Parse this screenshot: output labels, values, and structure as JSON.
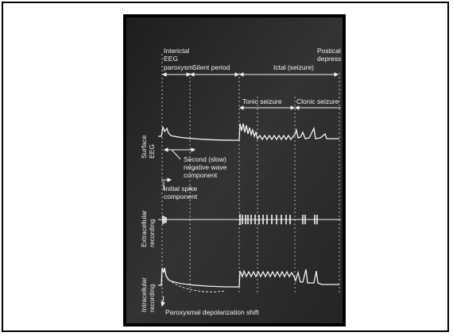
{
  "figure": {
    "phases": {
      "interictal": [
        "Interictal",
        "EEG",
        "paroxysm"
      ],
      "silent": "Silent period",
      "ictal": "Ictal (seizure)",
      "postictal": [
        "Postical",
        "depress"
      ]
    },
    "sub_phases": {
      "tonic": "Tonic seizure",
      "clonic": "Clonic seizure"
    },
    "channels": {
      "surface_eeg": [
        "Surface",
        "EEG"
      ],
      "extracellular": [
        "Extracellular",
        "recording"
      ],
      "intracellular": [
        "Intracellular",
        "recording"
      ]
    },
    "annotations": {
      "slow_wave": [
        "Second (slow)",
        "negative wave",
        "component"
      ],
      "initial_spike": [
        "Initial spike",
        "component"
      ],
      "pds": "Paroxysmal depolarization shift"
    },
    "colors": {
      "background": "#2b2b2b",
      "trace": "#f2f2f2",
      "frame": "#000000"
    }
  }
}
